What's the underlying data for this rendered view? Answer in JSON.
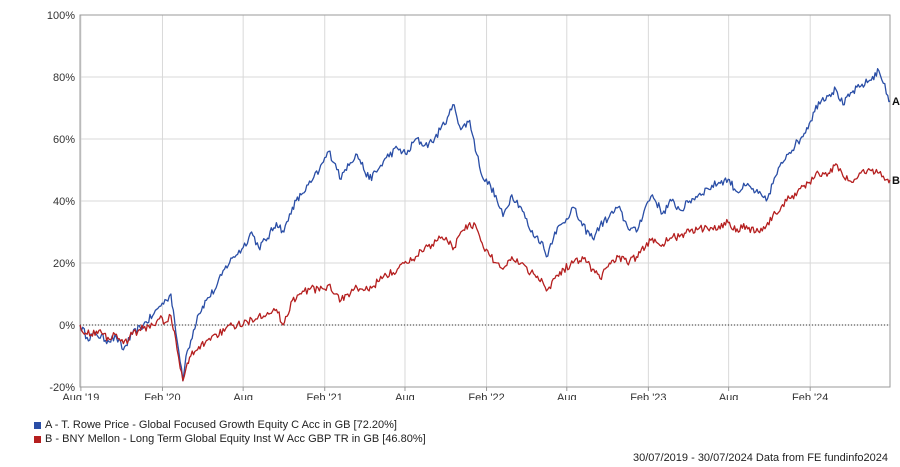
{
  "chart_data": {
    "type": "line",
    "ylim": [
      -20,
      100
    ],
    "yticks": [
      -20,
      0,
      20,
      40,
      60,
      80,
      100
    ],
    "ytick_labels": [
      "-20%",
      "0%",
      "20%",
      "40%",
      "60%",
      "80%",
      "100%"
    ],
    "xticks": [
      "2019-08-01",
      "2020-02-01",
      "2020-08-01",
      "2021-02-01",
      "2021-08-01",
      "2022-02-01",
      "2022-08-01",
      "2023-02-01",
      "2023-08-01",
      "2024-02-01"
    ],
    "xtick_labels": [
      "Aug '19",
      "Feb '20",
      "Aug",
      "Feb '21",
      "Aug",
      "Feb '22",
      "Aug",
      "Feb '23",
      "Aug",
      "Feb '24"
    ],
    "xlim": [
      "2019-07-30",
      "2024-07-30"
    ],
    "grid": true,
    "legend_position": "bottom-left",
    "series": [
      {
        "name": "A - T. Rowe Price - Global Focused Growth Equity C Acc in GB [72.20%]",
        "end_label": "A",
        "color": "#2a4ea6",
        "points": [
          [
            "2019-07-30",
            0
          ],
          [
            "2019-08-15",
            -4
          ],
          [
            "2019-09-05",
            -3
          ],
          [
            "2019-10-01",
            -5
          ],
          [
            "2019-10-20",
            -4
          ],
          [
            "2019-11-05",
            -8
          ],
          [
            "2019-11-25",
            -3
          ],
          [
            "2019-12-20",
            0
          ],
          [
            "2020-01-10",
            3
          ],
          [
            "2020-01-25",
            6
          ],
          [
            "2020-02-10",
            8
          ],
          [
            "2020-02-20",
            10
          ],
          [
            "2020-02-28",
            2
          ],
          [
            "2020-03-05",
            -5
          ],
          [
            "2020-03-12",
            -12
          ],
          [
            "2020-03-18",
            -18
          ],
          [
            "2020-03-25",
            -10
          ],
          [
            "2020-04-05",
            -5
          ],
          [
            "2020-04-20",
            3
          ],
          [
            "2020-05-10",
            8
          ],
          [
            "2020-06-01",
            12
          ],
          [
            "2020-06-20",
            18
          ],
          [
            "2020-07-10",
            22
          ],
          [
            "2020-08-01",
            25
          ],
          [
            "2020-08-20",
            30
          ],
          [
            "2020-09-05",
            25
          ],
          [
            "2020-09-25",
            28
          ],
          [
            "2020-10-15",
            33
          ],
          [
            "2020-11-01",
            30
          ],
          [
            "2020-11-20",
            38
          ],
          [
            "2020-12-10",
            42
          ],
          [
            "2021-01-01",
            46
          ],
          [
            "2021-01-20",
            50
          ],
          [
            "2021-02-10",
            56
          ],
          [
            "2021-02-25",
            52
          ],
          [
            "2021-03-10",
            47
          ],
          [
            "2021-03-25",
            52
          ],
          [
            "2021-04-15",
            55
          ],
          [
            "2021-05-12",
            47
          ],
          [
            "2021-06-01",
            50
          ],
          [
            "2021-06-20",
            54
          ],
          [
            "2021-07-15",
            57
          ],
          [
            "2021-08-05",
            55
          ],
          [
            "2021-08-25",
            60
          ],
          [
            "2021-09-15",
            58
          ],
          [
            "2021-10-01",
            59
          ],
          [
            "2021-10-20",
            63
          ],
          [
            "2021-11-05",
            67
          ],
          [
            "2021-11-20",
            71
          ],
          [
            "2021-12-05",
            63
          ],
          [
            "2021-12-25",
            66
          ],
          [
            "2022-01-10",
            55
          ],
          [
            "2022-01-25",
            47
          ],
          [
            "2022-02-10",
            45
          ],
          [
            "2022-02-25",
            40
          ],
          [
            "2022-03-10",
            35
          ],
          [
            "2022-03-30",
            42
          ],
          [
            "2022-04-20",
            38
          ],
          [
            "2022-05-12",
            30
          ],
          [
            "2022-06-05",
            27
          ],
          [
            "2022-06-16",
            22
          ],
          [
            "2022-07-05",
            30
          ],
          [
            "2022-07-25",
            33
          ],
          [
            "2022-08-15",
            38
          ],
          [
            "2022-09-05",
            32
          ],
          [
            "2022-09-28",
            28
          ],
          [
            "2022-10-15",
            32
          ],
          [
            "2022-11-05",
            35
          ],
          [
            "2022-11-25",
            38
          ],
          [
            "2022-12-15",
            32
          ],
          [
            "2023-01-05",
            30
          ],
          [
            "2023-01-25",
            38
          ],
          [
            "2023-02-10",
            42
          ],
          [
            "2023-03-05",
            36
          ],
          [
            "2023-03-25",
            40
          ],
          [
            "2023-04-15",
            37
          ],
          [
            "2023-05-05",
            40
          ],
          [
            "2023-05-25",
            42
          ],
          [
            "2023-06-15",
            44
          ],
          [
            "2023-07-10",
            46
          ],
          [
            "2023-07-31",
            47
          ],
          [
            "2023-08-20",
            43
          ],
          [
            "2023-09-10",
            45
          ],
          [
            "2023-10-01",
            43
          ],
          [
            "2023-10-25",
            40
          ],
          [
            "2023-11-15",
            48
          ],
          [
            "2023-12-10",
            55
          ],
          [
            "2024-01-10",
            60
          ],
          [
            "2024-01-30",
            65
          ],
          [
            "2024-02-20",
            72
          ],
          [
            "2024-03-10",
            74
          ],
          [
            "2024-03-30",
            76
          ],
          [
            "2024-04-15",
            71
          ],
          [
            "2024-05-05",
            75
          ],
          [
            "2024-05-25",
            77
          ],
          [
            "2024-06-15",
            79
          ],
          [
            "2024-07-05",
            82
          ],
          [
            "2024-07-15",
            78
          ],
          [
            "2024-07-25",
            74
          ],
          [
            "2024-07-30",
            72.2
          ]
        ]
      },
      {
        "name": "B - BNY Mellon - Long Term Global Equity Inst W Acc GBP TR in GB [46.80%]",
        "end_label": "B",
        "color": "#b51f1f",
        "points": [
          [
            "2019-07-30",
            0
          ],
          [
            "2019-08-15",
            -3
          ],
          [
            "2019-09-05",
            -2
          ],
          [
            "2019-10-01",
            -4
          ],
          [
            "2019-10-20",
            -3
          ],
          [
            "2019-11-05",
            -6
          ],
          [
            "2019-11-25",
            -3
          ],
          [
            "2019-12-20",
            -1
          ],
          [
            "2020-01-10",
            0
          ],
          [
            "2020-01-25",
            2
          ],
          [
            "2020-02-10",
            1
          ],
          [
            "2020-02-20",
            3
          ],
          [
            "2020-02-28",
            -2
          ],
          [
            "2020-03-05",
            -8
          ],
          [
            "2020-03-12",
            -14
          ],
          [
            "2020-03-18",
            -18
          ],
          [
            "2020-03-25",
            -14
          ],
          [
            "2020-04-05",
            -10
          ],
          [
            "2020-04-20",
            -8
          ],
          [
            "2020-05-10",
            -5
          ],
          [
            "2020-06-01",
            -3
          ],
          [
            "2020-06-20",
            -2
          ],
          [
            "2020-07-10",
            0
          ],
          [
            "2020-08-01",
            0
          ],
          [
            "2020-08-20",
            2
          ],
          [
            "2020-09-05",
            3
          ],
          [
            "2020-09-25",
            4
          ],
          [
            "2020-10-15",
            5
          ],
          [
            "2020-10-30",
            0
          ],
          [
            "2020-11-20",
            8
          ],
          [
            "2020-12-10",
            10
          ],
          [
            "2021-01-01",
            12
          ],
          [
            "2021-01-20",
            11
          ],
          [
            "2021-02-10",
            13
          ],
          [
            "2021-02-25",
            10
          ],
          [
            "2021-03-10",
            8
          ],
          [
            "2021-03-25",
            10
          ],
          [
            "2021-04-15",
            12
          ],
          [
            "2021-05-12",
            11
          ],
          [
            "2021-06-01",
            14
          ],
          [
            "2021-06-20",
            16
          ],
          [
            "2021-07-15",
            18
          ],
          [
            "2021-08-05",
            20
          ],
          [
            "2021-08-25",
            22
          ],
          [
            "2021-09-15",
            25
          ],
          [
            "2021-10-01",
            26
          ],
          [
            "2021-10-20",
            28
          ],
          [
            "2021-11-05",
            27
          ],
          [
            "2021-11-20",
            25
          ],
          [
            "2021-12-05",
            30
          ],
          [
            "2021-12-25",
            33
          ],
          [
            "2022-01-10",
            31
          ],
          [
            "2022-01-25",
            25
          ],
          [
            "2022-02-10",
            22
          ],
          [
            "2022-02-25",
            20
          ],
          [
            "2022-03-10",
            18
          ],
          [
            "2022-03-30",
            22
          ],
          [
            "2022-04-20",
            20
          ],
          [
            "2022-05-12",
            17
          ],
          [
            "2022-06-05",
            15
          ],
          [
            "2022-06-16",
            11
          ],
          [
            "2022-07-05",
            15
          ],
          [
            "2022-07-25",
            18
          ],
          [
            "2022-08-15",
            20
          ],
          [
            "2022-09-05",
            22
          ],
          [
            "2022-09-28",
            18
          ],
          [
            "2022-10-15",
            15
          ],
          [
            "2022-11-05",
            20
          ],
          [
            "2022-11-25",
            22
          ],
          [
            "2022-12-15",
            20
          ],
          [
            "2023-01-05",
            22
          ],
          [
            "2023-01-25",
            25
          ],
          [
            "2023-02-10",
            28
          ],
          [
            "2023-03-05",
            26
          ],
          [
            "2023-03-25",
            28
          ],
          [
            "2023-04-15",
            29
          ],
          [
            "2023-05-05",
            30
          ],
          [
            "2023-05-25",
            31
          ],
          [
            "2023-06-15",
            31
          ],
          [
            "2023-07-10",
            32
          ],
          [
            "2023-07-31",
            33
          ],
          [
            "2023-08-20",
            31
          ],
          [
            "2023-09-10",
            32
          ],
          [
            "2023-10-01",
            30
          ],
          [
            "2023-10-25",
            32
          ],
          [
            "2023-11-15",
            36
          ],
          [
            "2023-12-10",
            40
          ],
          [
            "2024-01-10",
            44
          ],
          [
            "2024-01-30",
            46
          ],
          [
            "2024-02-20",
            49
          ],
          [
            "2024-03-10",
            48
          ],
          [
            "2024-03-30",
            52
          ],
          [
            "2024-04-15",
            48
          ],
          [
            "2024-05-05",
            46
          ],
          [
            "2024-05-25",
            49
          ],
          [
            "2024-06-15",
            50
          ],
          [
            "2024-07-05",
            49
          ],
          [
            "2024-07-15",
            48
          ],
          [
            "2024-07-25",
            47
          ],
          [
            "2024-07-30",
            46.8
          ]
        ]
      }
    ]
  },
  "footer": {
    "text": "30/07/2019 - 30/07/2024 Data from FE fundinfo2024"
  }
}
